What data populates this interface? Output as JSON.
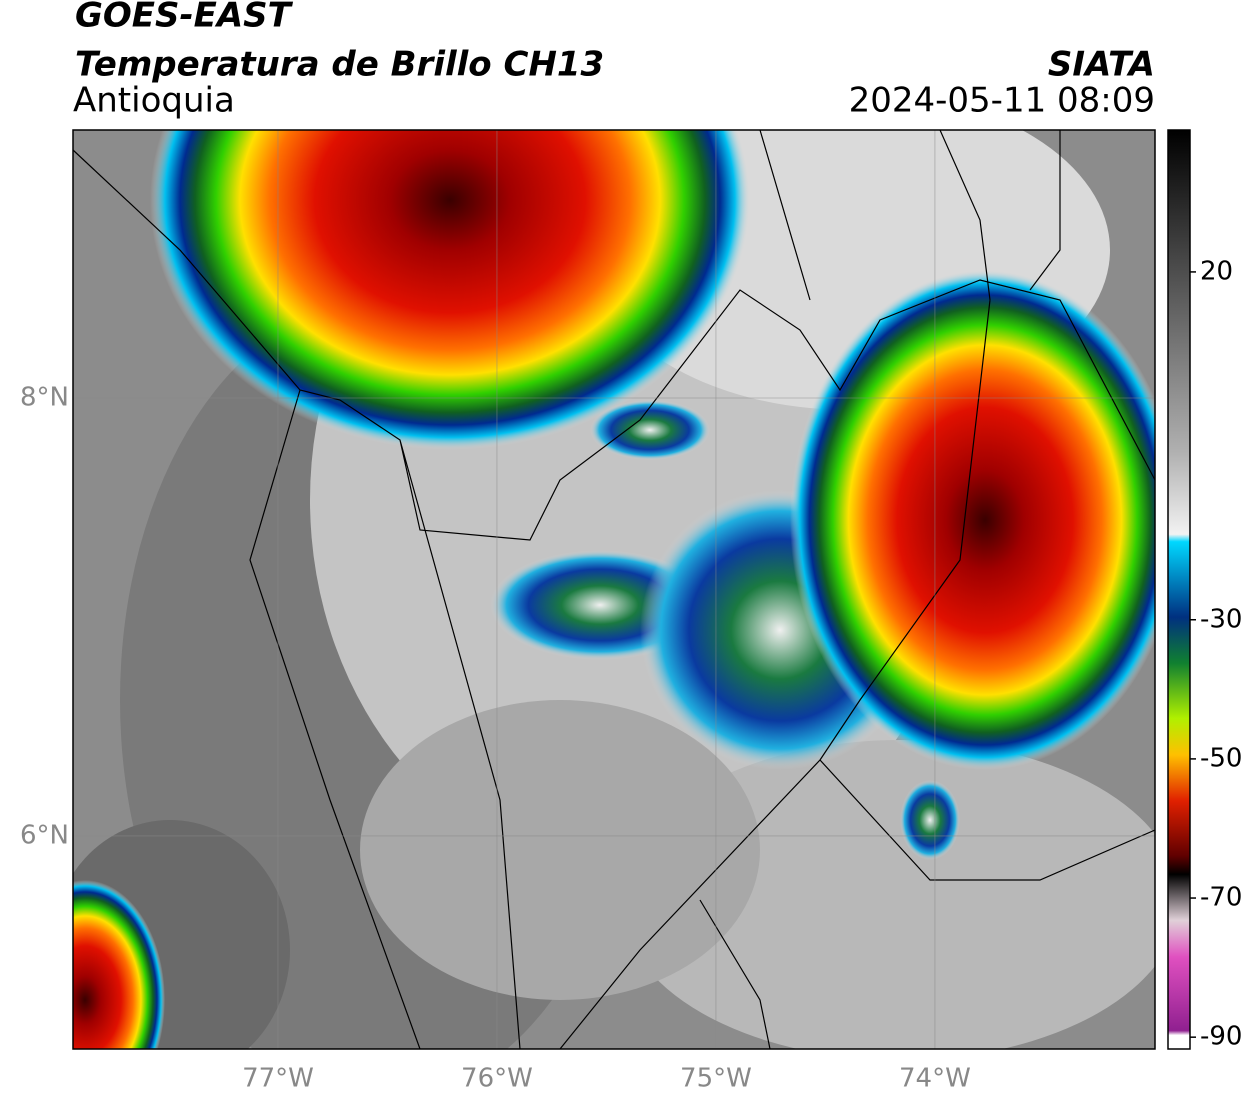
{
  "header": {
    "title": "GOES-EAST",
    "subtitle": "Temperatura de Brillo CH13",
    "region": "Antioquia",
    "source": "SIATA",
    "datetime": "2024-05-11 08:09"
  },
  "map": {
    "lon_range": [
      -77.936,
      -72.995
    ],
    "lat_range": [
      5.027,
      9.224
    ],
    "lon_ticks": [
      {
        "value": -77,
        "label": "77°W"
      },
      {
        "value": -76,
        "label": "76°W"
      },
      {
        "value": -75,
        "label": "75°W"
      },
      {
        "value": -74,
        "label": "74°W"
      }
    ],
    "lat_ticks": [
      {
        "value": 6,
        "label": "6°N"
      },
      {
        "value": 8,
        "label": "8°N"
      }
    ]
  },
  "colorbar": {
    "range": [
      -91.7,
      40.4
    ],
    "ticks": [
      -90,
      -70,
      -50,
      -30,
      20
    ]
  }
}
